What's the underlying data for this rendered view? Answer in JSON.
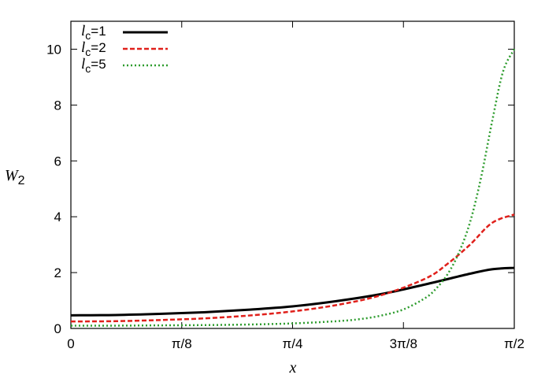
{
  "chart_data": {
    "type": "line",
    "title": "",
    "xlabel": "x",
    "ylabel": {
      "base": "W",
      "sub": "2"
    },
    "xlim": [
      0,
      1.5707963
    ],
    "ylim": [
      0,
      11
    ],
    "x_ticks": [
      {
        "value": 0,
        "label": "0"
      },
      {
        "value": 0.3926991,
        "label": "π/8"
      },
      {
        "value": 0.7853982,
        "label": "π/4"
      },
      {
        "value": 1.1780972,
        "label": "3π/8"
      },
      {
        "value": 1.5707963,
        "label": "π/2"
      }
    ],
    "y_ticks": [
      0,
      2,
      4,
      6,
      8,
      10
    ],
    "y_tick_labels": [
      "0",
      "2",
      "4",
      "6",
      "8",
      "10"
    ],
    "grid": false,
    "legend_position": "top-left",
    "series": [
      {
        "name": "l_c=1",
        "label_var": "l",
        "label_sub": "c",
        "label_rest": "=1",
        "color": "#000000",
        "dash": "solid",
        "width": 3,
        "x": [
          0,
          0.157,
          0.314,
          0.471,
          0.628,
          0.785,
          0.942,
          1.099,
          1.257,
          1.414,
          1.492,
          1.571
        ],
        "y": [
          0.47,
          0.48,
          0.52,
          0.58,
          0.67,
          0.79,
          0.98,
          1.23,
          1.58,
          1.96,
          2.12,
          2.17
        ]
      },
      {
        "name": "l_c=2",
        "label_var": "l",
        "label_sub": "c",
        "label_rest": "=2",
        "color": "#e0201b",
        "dash": "dashed",
        "width": 2.5,
        "x": [
          0,
          0.157,
          0.314,
          0.471,
          0.628,
          0.785,
          0.942,
          1.099,
          1.257,
          1.335,
          1.414,
          1.492,
          1.571
        ],
        "y": [
          0.25,
          0.26,
          0.3,
          0.36,
          0.46,
          0.61,
          0.84,
          1.19,
          1.79,
          2.32,
          3.0,
          3.78,
          4.08
        ]
      },
      {
        "name": "l_c=5",
        "label_var": "l",
        "label_sub": "c",
        "label_rest": "=5",
        "color": "#2e9c2e",
        "dash": "dotted",
        "width": 2.5,
        "x": [
          0,
          0.157,
          0.314,
          0.471,
          0.628,
          0.785,
          0.942,
          1.021,
          1.099,
          1.178,
          1.257,
          1.296,
          1.335,
          1.374,
          1.414,
          1.453,
          1.492,
          1.531,
          1.571
        ],
        "y": [
          0.1,
          0.1,
          0.11,
          0.12,
          0.14,
          0.18,
          0.26,
          0.33,
          0.46,
          0.68,
          1.1,
          1.45,
          1.95,
          2.7,
          3.8,
          5.4,
          7.4,
          9.2,
          10.0
        ]
      }
    ]
  }
}
